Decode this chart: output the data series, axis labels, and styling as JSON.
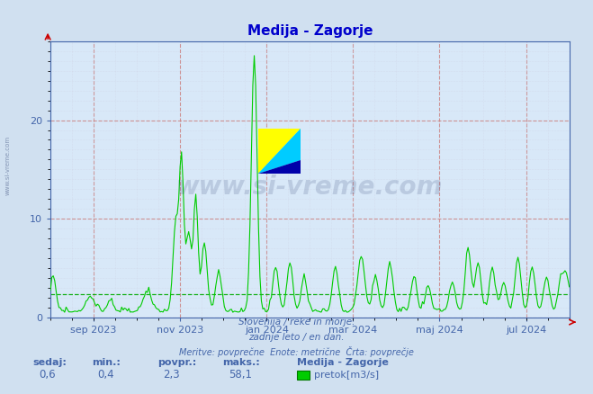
{
  "title": "Medija - Zagorje",
  "title_color": "#0000cc",
  "bg_color": "#d0e0f0",
  "plot_bg_color": "#d8e8f8",
  "grid_color": "#cc8888",
  "line_color": "#00cc00",
  "avg_line_color": "#00aa00",
  "avg_value": 2.3,
  "y_min": 0,
  "y_max": 28,
  "y_ticks": [
    0,
    10,
    20
  ],
  "text_color": "#4466aa",
  "footer_line1": "Slovenija / reke in morje.",
  "footer_line2": "zadnje leto / en dan.",
  "footer_line3": "Meritve: povprečne  Enote: metrične  Črta: povprečje",
  "label_sedaj": "sedaj:",
  "label_min": "min.:",
  "label_povpr": "povpr.:",
  "label_maks": "maks.:",
  "val_sedaj": "0,6",
  "val_min": "0,4",
  "val_povpr": "2,3",
  "val_maks": "58,1",
  "legend_station": "Medija - Zagorje",
  "legend_label": "pretok[m3/s]",
  "legend_color": "#00cc00",
  "watermark": "www.si-vreme.com",
  "left_label": "www.si-vreme.com",
  "x_tick_labels": [
    "sep 2023",
    "nov 2023",
    "jan 2024",
    "mar 2024",
    "maj 2024",
    "jul 2024"
  ],
  "x_tick_positions": [
    0.083,
    0.25,
    0.417,
    0.583,
    0.75,
    0.917
  ],
  "logo_colors": [
    "#ffff00",
    "#00ccff",
    "#0000aa"
  ],
  "spine_color": "#4466aa",
  "arrow_color": "#cc0000"
}
